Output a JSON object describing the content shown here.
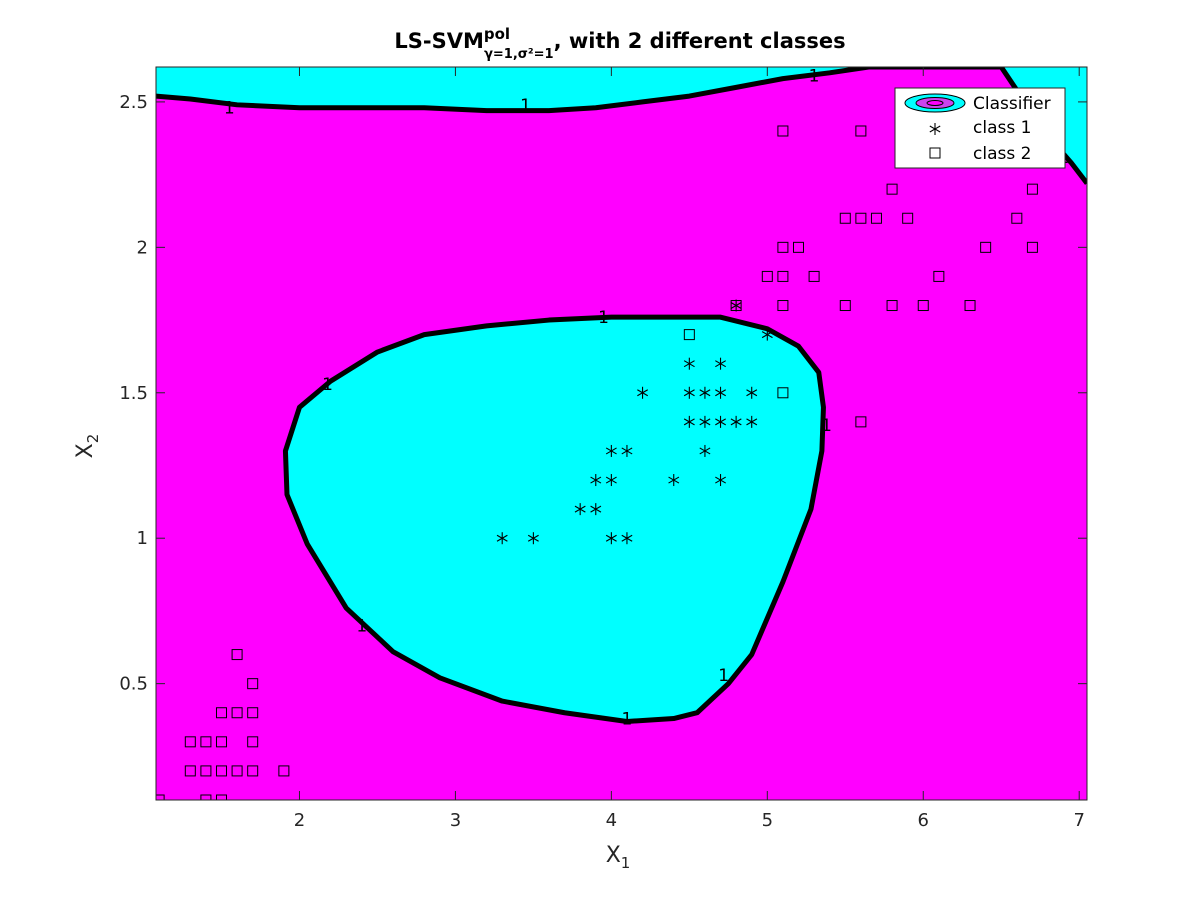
{
  "chart_data": {
    "type": "scatter",
    "title": "LS-SVM",
    "title_superscript": "pol",
    "title_subscript": "γ=1,σ²=1",
    "title_suffix": ", with 2 different classes",
    "xlabel": "X",
    "xlabel_subscript": "1",
    "ylabel": "X",
    "ylabel_subscript": "2",
    "xlim": [
      1.08,
      7.05
    ],
    "ylim": [
      0.1,
      2.62
    ],
    "xticks": [
      2,
      3,
      4,
      5,
      6,
      7
    ],
    "yticks": [
      0.5,
      1,
      1.5,
      2,
      2.5
    ],
    "grid": false,
    "legend_position": "top-right",
    "legend": [
      {
        "label": "Classifier",
        "marker": "ellipse"
      },
      {
        "label": "class 1",
        "marker": "asterisk"
      },
      {
        "label": "class 2",
        "marker": "square"
      }
    ],
    "colors": {
      "background_region": "#ff00ff",
      "class1_region": "#00ffff",
      "boundary": "#000000",
      "marker": "#000000"
    },
    "boundary_level": "1",
    "contour_labels": [
      {
        "text": "1",
        "x": 1.55,
        "y": 2.48
      },
      {
        "text": "1",
        "x": 3.45,
        "y": 2.49
      },
      {
        "text": "1",
        "x": 5.3,
        "y": 2.59
      },
      {
        "text": "1",
        "x": 6.9,
        "y": 2.31
      },
      {
        "text": "1",
        "x": 3.95,
        "y": 1.76
      },
      {
        "text": "1",
        "x": 2.18,
        "y": 1.53
      },
      {
        "text": "1",
        "x": 5.38,
        "y": 1.39
      },
      {
        "text": "1",
        "x": 2.4,
        "y": 0.7
      },
      {
        "text": "1",
        "x": 4.72,
        "y": 0.53
      },
      {
        "text": "1",
        "x": 4.1,
        "y": 0.38
      }
    ],
    "top_boundary": [
      [
        1.08,
        2.52
      ],
      [
        1.3,
        2.51
      ],
      [
        1.6,
        2.49
      ],
      [
        2.0,
        2.48
      ],
      [
        2.4,
        2.48
      ],
      [
        2.8,
        2.48
      ],
      [
        3.2,
        2.47
      ],
      [
        3.6,
        2.47
      ],
      [
        3.9,
        2.48
      ],
      [
        4.2,
        2.5
      ],
      [
        4.5,
        2.52
      ],
      [
        4.8,
        2.55
      ],
      [
        5.1,
        2.58
      ],
      [
        5.4,
        2.6
      ],
      [
        5.65,
        2.62
      ],
      [
        6.5,
        2.62
      ],
      [
        6.65,
        2.5
      ],
      [
        6.82,
        2.37
      ],
      [
        6.95,
        2.29
      ],
      [
        7.05,
        2.22
      ]
    ],
    "inner_boundary": [
      [
        2.0,
        1.45
      ],
      [
        2.2,
        1.54
      ],
      [
        2.5,
        1.64
      ],
      [
        2.8,
        1.7
      ],
      [
        3.2,
        1.73
      ],
      [
        3.6,
        1.75
      ],
      [
        4.0,
        1.76
      ],
      [
        4.4,
        1.76
      ],
      [
        4.7,
        1.76
      ],
      [
        5.0,
        1.72
      ],
      [
        5.2,
        1.66
      ],
      [
        5.33,
        1.57
      ],
      [
        5.36,
        1.45
      ],
      [
        5.35,
        1.3
      ],
      [
        5.28,
        1.1
      ],
      [
        5.1,
        0.85
      ],
      [
        4.9,
        0.6
      ],
      [
        4.75,
        0.5
      ],
      [
        4.55,
        0.4
      ],
      [
        4.4,
        0.38
      ],
      [
        4.1,
        0.37
      ],
      [
        3.7,
        0.4
      ],
      [
        3.3,
        0.44
      ],
      [
        2.9,
        0.52
      ],
      [
        2.6,
        0.61
      ],
      [
        2.3,
        0.76
      ],
      [
        2.05,
        0.98
      ],
      [
        1.92,
        1.15
      ],
      [
        1.91,
        1.3
      ]
    ],
    "class1": [
      [
        3.3,
        1.0
      ],
      [
        3.5,
        1.0
      ],
      [
        3.8,
        1.1
      ],
      [
        3.9,
        1.1
      ],
      [
        3.9,
        1.2
      ],
      [
        4.0,
        1.2
      ],
      [
        4.0,
        1.3
      ],
      [
        4.1,
        1.3
      ],
      [
        4.0,
        1.0
      ],
      [
        4.1,
        1.0
      ],
      [
        4.2,
        1.5
      ],
      [
        4.4,
        1.2
      ],
      [
        4.5,
        1.4
      ],
      [
        4.5,
        1.5
      ],
      [
        4.5,
        1.6
      ],
      [
        4.6,
        1.3
      ],
      [
        4.6,
        1.4
      ],
      [
        4.6,
        1.5
      ],
      [
        4.7,
        1.2
      ],
      [
        4.7,
        1.4
      ],
      [
        4.7,
        1.5
      ],
      [
        4.7,
        1.6
      ],
      [
        4.8,
        1.4
      ],
      [
        4.8,
        1.8
      ],
      [
        4.9,
        1.4
      ],
      [
        4.9,
        1.5
      ],
      [
        5.0,
        1.7
      ]
    ],
    "class2": [
      [
        1.1,
        0.1
      ],
      [
        1.3,
        0.2
      ],
      [
        1.3,
        0.3
      ],
      [
        1.4,
        0.1
      ],
      [
        1.4,
        0.2
      ],
      [
        1.4,
        0.3
      ],
      [
        1.5,
        0.1
      ],
      [
        1.5,
        0.2
      ],
      [
        1.5,
        0.3
      ],
      [
        1.5,
        0.4
      ],
      [
        1.6,
        0.2
      ],
      [
        1.6,
        0.4
      ],
      [
        1.6,
        0.6
      ],
      [
        1.7,
        0.2
      ],
      [
        1.7,
        0.3
      ],
      [
        1.7,
        0.4
      ],
      [
        1.7,
        0.5
      ],
      [
        1.9,
        0.2
      ],
      [
        4.5,
        1.7
      ],
      [
        4.8,
        1.8
      ],
      [
        5.0,
        1.9
      ],
      [
        5.1,
        1.5
      ],
      [
        5.1,
        1.8
      ],
      [
        5.1,
        1.9
      ],
      [
        5.1,
        2.0
      ],
      [
        5.1,
        2.4
      ],
      [
        5.2,
        2.0
      ],
      [
        5.3,
        1.9
      ],
      [
        5.5,
        1.8
      ],
      [
        5.5,
        2.1
      ],
      [
        5.6,
        1.4
      ],
      [
        5.6,
        2.1
      ],
      [
        5.6,
        2.4
      ],
      [
        5.7,
        2.1
      ],
      [
        5.8,
        1.8
      ],
      [
        5.8,
        2.2
      ],
      [
        5.9,
        2.1
      ],
      [
        6.0,
        1.8
      ],
      [
        6.1,
        1.9
      ],
      [
        6.3,
        1.8
      ],
      [
        6.4,
        2.0
      ],
      [
        6.6,
        2.1
      ],
      [
        6.7,
        2.0
      ],
      [
        6.7,
        2.2
      ]
    ]
  }
}
